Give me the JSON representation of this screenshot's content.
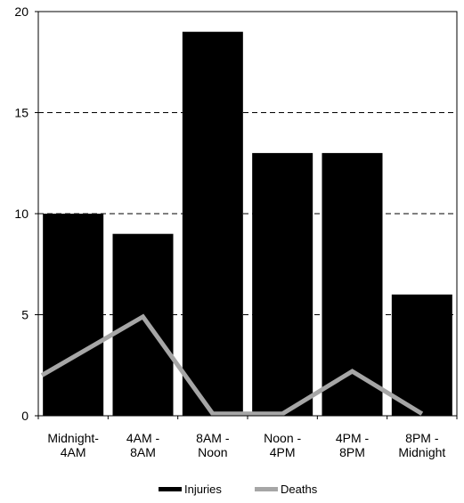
{
  "chart_data": {
    "type": "bar",
    "categories": [
      [
        "Midnight-",
        "4AM"
      ],
      [
        "4AM -",
        "8AM"
      ],
      [
        "8AM -",
        "Noon"
      ],
      [
        "Noon -",
        "4PM"
      ],
      [
        "4PM -",
        "8PM"
      ],
      [
        "8PM -",
        "Midnight"
      ]
    ],
    "series": [
      {
        "name": "Injuries",
        "kind": "bar",
        "color": "#000000",
        "values": [
          10,
          9,
          19,
          13,
          13,
          6
        ]
      },
      {
        "name": "Deaths",
        "kind": "line",
        "color": "#a6a6a6",
        "values": [
          2,
          4.9,
          0.1,
          0.1,
          2.2,
          0.1
        ]
      }
    ],
    "title": "",
    "xlabel": "",
    "ylabel": "",
    "ylim": [
      0,
      20
    ],
    "yticks": [
      "0",
      "5",
      "10",
      "15",
      "20"
    ],
    "grid": true,
    "legend_position": "bottom"
  }
}
